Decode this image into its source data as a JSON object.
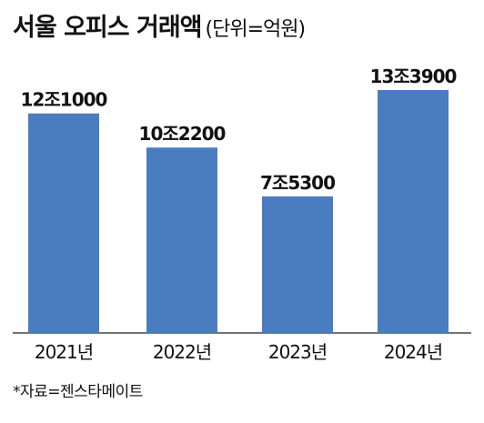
{
  "header": {
    "title": "서울 오피스 거래액",
    "unit": "(단위=억원)"
  },
  "colors": {
    "bar": "#4a7dbf",
    "baseline": "#222222",
    "text": "#111111"
  },
  "chart_data": {
    "type": "bar",
    "title": "서울 오피스 거래액",
    "subtitle": "(단위=억원)",
    "categories": [
      "2021년",
      "2022년",
      "2023년",
      "2024년"
    ],
    "values": [
      121000,
      102200,
      75300,
      133900
    ],
    "value_labels": [
      "12조1000",
      "10조2200",
      "7조5300",
      "13조3900"
    ],
    "ylim": [
      0,
      133900
    ],
    "grid": false,
    "legend": "none"
  },
  "footer": {
    "source": "*자료=젠스타메이트"
  }
}
